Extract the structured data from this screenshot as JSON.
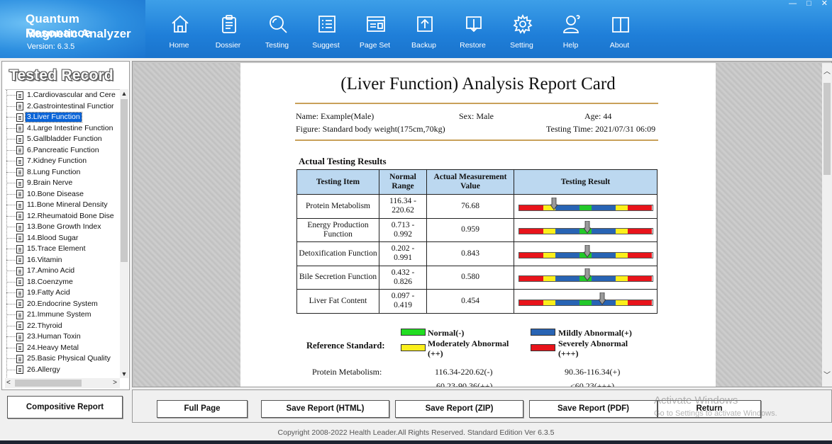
{
  "app": {
    "title_line1": "Quantum Resonance",
    "title_line2": "Magnetic Analyzer",
    "version": "Version: 6.3.5"
  },
  "window_controls": [
    "—",
    "□",
    "✕"
  ],
  "nav": [
    {
      "label": "Home",
      "icon": "home-icon"
    },
    {
      "label": "Dossier",
      "icon": "clipboard-icon"
    },
    {
      "label": "Testing",
      "icon": "magnifier-icon"
    },
    {
      "label": "Suggest",
      "icon": "list-icon"
    },
    {
      "label": "Page Set",
      "icon": "page-setup-icon"
    },
    {
      "label": "Backup",
      "icon": "upload-icon"
    },
    {
      "label": "Restore",
      "icon": "download-icon"
    },
    {
      "label": "Setting",
      "icon": "gear-icon"
    },
    {
      "label": "Help",
      "icon": "person-help-icon"
    },
    {
      "label": "About",
      "icon": "book-icon"
    }
  ],
  "sidebar": {
    "title": "Tested Record",
    "selected_index": 2,
    "items": [
      "1.Cardiovascular and Cere",
      "2.Gastrointestinal Functior",
      "3.Liver Function",
      "4.Large Intestine Function",
      "5.Gallbladder Function",
      "6.Pancreatic Function",
      "7.Kidney Function",
      "8.Lung Function",
      "9.Brain Nerve",
      "10.Bone Disease",
      "11.Bone Mineral Density",
      "12.Rheumatoid Bone Dise",
      "13.Bone Growth Index",
      "14.Blood Sugar",
      "15.Trace Element",
      "16.Vitamin",
      "17.Amino Acid",
      "18.Coenzyme",
      "19.Fatty Acid",
      "20.Endocrine System",
      "21.Immune System",
      "22.Thyroid",
      "23.Human Toxin",
      "24.Heavy Metal",
      "25.Basic Physical Quality",
      "26.Allergy"
    ],
    "compositive_label": "Compositive Report"
  },
  "report": {
    "title": "(Liver Function) Analysis Report Card",
    "name": "Name: Example(Male)",
    "sex": "Sex: Male",
    "age": "Age: 44",
    "figure": "Figure: Standard body weight(175cm,70kg)",
    "testing_time": "Testing Time: 2021/07/31 06:09",
    "section_heading": "Actual Testing Results",
    "columns": [
      "Testing Item",
      "Normal Range",
      "Actual Measurement Value",
      "Testing Result"
    ],
    "rows": [
      {
        "item": "Protein Metabolism",
        "range_line1": "116.34 -",
        "range_line2": "220.62",
        "value": "76.68",
        "marker": 0.26
      },
      {
        "item": "Energy Production Function",
        "range_line1": "0.713 -",
        "range_line2": "0.992",
        "value": "0.959",
        "marker": 0.51
      },
      {
        "item": "Detoxification Function",
        "range_line1": "0.202 -",
        "range_line2": "0.991",
        "value": "0.843",
        "marker": 0.51
      },
      {
        "item": "Bile Secretion Function",
        "range_line1": "0.432 -",
        "range_line2": "0.826",
        "value": "0.580",
        "marker": 0.51
      },
      {
        "item": "Liver Fat Content",
        "range_line1": "0.097 -",
        "range_line2": "0.419",
        "value": "0.454",
        "marker": 0.62
      }
    ],
    "scale_colors": [
      "#e8141b",
      "#fbef1b",
      "#2864b4",
      "#22c82a",
      "#2864b4",
      "#fbef1b",
      "#e8141b"
    ],
    "reference": {
      "heading": "Reference Standard:",
      "normal": "Normal(-)",
      "normal_color": "#22dd22",
      "mild": "Mildly Abnormal(+)",
      "mild_color": "#2864b4",
      "moderate": "Moderately Abnormal",
      "moderate_sub": "(++)",
      "moderate_color": "#fbef1b",
      "severe": "Severely Abnormal",
      "severe_sub": "(+++)",
      "severe_color": "#e8141b"
    },
    "protein_ref": {
      "label": "Protein Metabolism:",
      "normal": "116.34-220.62(-)",
      "mild": "90.36-116.34(+)",
      "moderate": "60.23-90.36(++)",
      "severe": "<60.23(+++)"
    }
  },
  "toolbar": {
    "full_page": "Full Page",
    "save_html": "Save Report (HTML)",
    "save_zip": "Save Report (ZIP)",
    "save_pdf": "Save Report (PDF)",
    "return": "Return"
  },
  "watermark": {
    "line1": "Activate Windows",
    "line2": "Go to Settings to activate Windows."
  },
  "footer": {
    "copyright": "Copyright 2008-2022 Health Leader.All Rights Reserved. Standard Edition Ver 6.3.5"
  }
}
